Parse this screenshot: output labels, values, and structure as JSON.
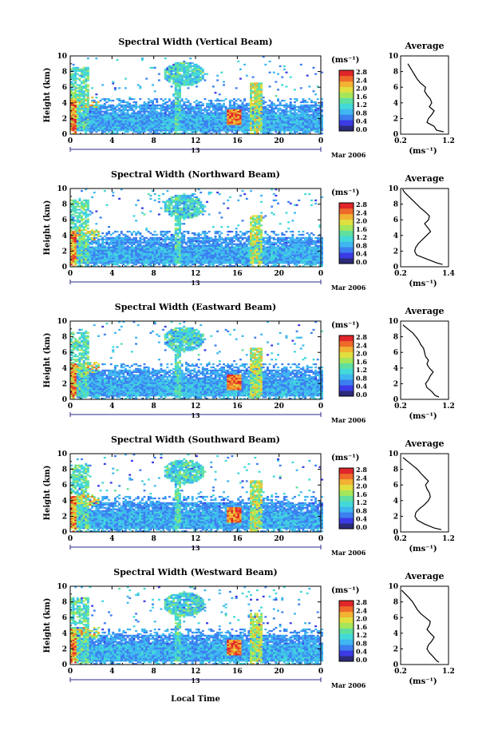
{
  "colors": {
    "scale": [
      "#2b2b7a",
      "#3b3be6",
      "#3c7ff0",
      "#3fb7f0",
      "#43d9d9",
      "#5fe0a0",
      "#a6e65a",
      "#e0e040",
      "#f2b233",
      "#ef6a2a",
      "#e0262a"
    ],
    "axis": "#000000",
    "timebar": "#2a2a8a",
    "background": "#ffffff"
  },
  "shared": {
    "ylabel": "Height (km)",
    "yticks": [
      "0",
      "2",
      "4",
      "6",
      "8",
      "10"
    ],
    "xticks": [
      "0",
      "4",
      "8",
      "12",
      "16",
      "20",
      "0"
    ],
    "date_day": "13",
    "date_month": "Mar 2006",
    "xlabel": "Local Time",
    "unit_label": "(ms⁻¹)",
    "scale_labels": [
      "2.8",
      "2.4",
      "2.0",
      "1.6",
      "1.2",
      "0.8",
      "0.4",
      "0.0"
    ],
    "avg_title": "Average",
    "avg_xlabel": "(ms⁻¹)",
    "avg_yticks": [
      "0",
      "2",
      "4",
      "6",
      "8",
      "10"
    ]
  },
  "chart_data": [
    {
      "type": "heatmap",
      "title": "Spectral Width (Vertical Beam)",
      "x_range": [
        0,
        24
      ],
      "y_range": [
        0,
        10
      ],
      "color_range": [
        0.0,
        2.8
      ],
      "profile": {
        "type": "line",
        "xlim": [
          0.2,
          1.2
        ],
        "xticks": [
          "0.2",
          "1.2"
        ],
        "height": [
          0.3,
          0.5,
          1,
          1.5,
          2,
          2.5,
          3,
          3.5,
          4,
          4.5,
          5,
          5.5,
          6,
          6.5,
          7,
          7.5,
          8,
          8.5,
          9
        ],
        "value": [
          1.1,
          0.95,
          0.9,
          0.75,
          0.78,
          0.85,
          0.9,
          0.8,
          0.85,
          0.82,
          0.75,
          0.7,
          0.72,
          0.62,
          0.55,
          0.5,
          0.45,
          0.4,
          0.35
        ]
      }
    },
    {
      "type": "heatmap",
      "title": "Spectral Width (Northward Beam)",
      "x_range": [
        0,
        24
      ],
      "y_range": [
        0,
        10
      ],
      "color_range": [
        0.0,
        2.8
      ],
      "profile": {
        "type": "line",
        "xlim": [
          0.2,
          1.4
        ],
        "xticks": [
          "0.2",
          "1.4"
        ],
        "height": [
          0.3,
          0.5,
          1,
          1.5,
          2,
          2.5,
          3,
          3.5,
          4,
          4.5,
          5,
          5.5,
          6,
          6.5,
          7,
          7.5,
          8,
          8.5,
          9,
          9.5,
          9.9
        ],
        "value": [
          1.25,
          1.1,
          0.85,
          0.6,
          0.55,
          0.58,
          0.65,
          0.75,
          0.85,
          0.95,
          0.88,
          0.8,
          0.9,
          0.92,
          0.82,
          0.7,
          0.6,
          0.5,
          0.4,
          0.3,
          0.25
        ]
      }
    },
    {
      "type": "heatmap",
      "title": "Spectral Width (Eastward Beam)",
      "x_range": [
        0,
        24
      ],
      "y_range": [
        0,
        10
      ],
      "color_range": [
        0.0,
        2.8
      ],
      "profile": {
        "type": "line",
        "xlim": [
          0.2,
          1.2
        ],
        "xticks": [
          "0.2",
          "1.2"
        ],
        "height": [
          0.3,
          0.5,
          1,
          1.5,
          2,
          2.5,
          3,
          3.5,
          4,
          4.5,
          5,
          5.5,
          6,
          6.5,
          7,
          7.5,
          8,
          8.5,
          9,
          9.5
        ],
        "value": [
          1.0,
          0.92,
          0.85,
          0.75,
          0.72,
          0.78,
          0.82,
          0.88,
          0.8,
          0.75,
          0.78,
          0.72,
          0.7,
          0.68,
          0.62,
          0.58,
          0.52,
          0.45,
          0.35,
          0.25
        ]
      }
    },
    {
      "type": "heatmap",
      "title": "Spectral Width (Southward Beam)",
      "x_range": [
        0,
        24
      ],
      "y_range": [
        0,
        10
      ],
      "color_range": [
        0.0,
        2.8
      ],
      "profile": {
        "type": "line",
        "xlim": [
          0.2,
          1.2
        ],
        "xticks": [
          "0.2",
          "1.2"
        ],
        "height": [
          0.3,
          0.5,
          1,
          1.5,
          2,
          2.5,
          3,
          3.5,
          4,
          4.5,
          5,
          5.5,
          6,
          6.5,
          7,
          7.5,
          8,
          8.5,
          9,
          9.5
        ],
        "value": [
          1.05,
          0.9,
          0.7,
          0.55,
          0.5,
          0.52,
          0.6,
          0.7,
          0.78,
          0.82,
          0.8,
          0.75,
          0.72,
          0.78,
          0.7,
          0.62,
          0.55,
          0.45,
          0.35,
          0.25
        ]
      }
    },
    {
      "type": "heatmap",
      "title": "Spectral Width (Westward Beam)",
      "x_range": [
        0,
        24
      ],
      "y_range": [
        0,
        10
      ],
      "color_range": [
        0.0,
        2.8
      ],
      "profile": {
        "type": "line",
        "xlim": [
          0.2,
          1.2
        ],
        "xticks": [
          "0.2",
          "1.2"
        ],
        "height": [
          0.3,
          0.5,
          1,
          1.5,
          2,
          2.5,
          3,
          3.5,
          4,
          4.5,
          5,
          5.5,
          6,
          6.5,
          7,
          7.5,
          8,
          8.5,
          9,
          9.5
        ],
        "value": [
          1.0,
          0.95,
          0.88,
          0.8,
          0.75,
          0.78,
          0.85,
          0.9,
          0.82,
          0.75,
          0.8,
          0.82,
          0.72,
          0.62,
          0.55,
          0.5,
          0.45,
          0.38,
          0.3,
          0.22
        ]
      }
    }
  ]
}
